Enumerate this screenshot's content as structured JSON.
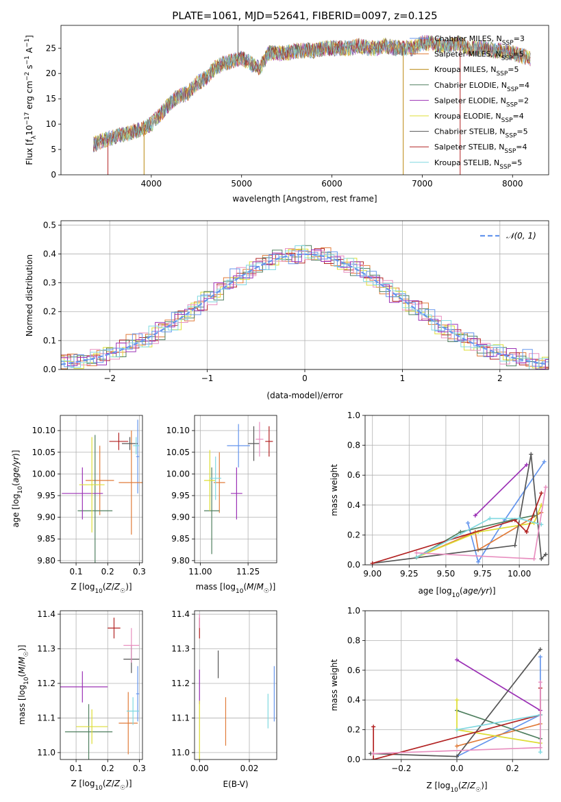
{
  "colors": [
    "#6495ed",
    "#e07b39",
    "#b8860b",
    "#4f7f5f",
    "#9b30b5",
    "#dddd33",
    "#555555",
    "#b22222",
    "#7fd8e0",
    "#e88ebf",
    "#9acd32"
  ],
  "chart_data": [
    {
      "id": "spectrum",
      "type": "line",
      "title": "PLATE=1061, MJD=52641, FIBERID=0097, z=0.125",
      "xlabel": "wavelength [Angstrom, rest frame]",
      "ylabel": "Flux [f_λ 10^-17 erg cm^-2 s^-1 A^-1]",
      "xlim": [
        3000,
        8400
      ],
      "ylim": [
        0,
        29.5
      ],
      "xticks": [
        "4000",
        "5000",
        "6000",
        "7000",
        "8000"
      ],
      "yticks": [
        "0",
        "5",
        "10",
        "15",
        "20",
        "25"
      ],
      "grid": false,
      "legend_position": "top-right",
      "spectrum_x": [
        3360,
        3500,
        3700,
        3900,
        4000,
        4100,
        4200,
        4300,
        4400,
        4500,
        4600,
        4700,
        4800,
        4900,
        5000,
        5100,
        5200,
        5300,
        5400,
        5500,
        5600,
        5700,
        5800,
        5900,
        6000,
        6100,
        6200,
        6300,
        6400,
        6500,
        6600,
        6700,
        6800,
        6900,
        7000,
        7100,
        7200,
        7300,
        7400,
        7500,
        7600,
        7700,
        7800,
        7900,
        8000,
        8100,
        8200
      ],
      "spectrum_y": [
        6,
        7,
        8,
        9,
        10,
        12,
        14,
        15.5,
        16,
        18,
        19,
        21,
        22,
        22.5,
        23,
        22,
        21,
        24,
        24,
        24,
        24.5,
        24.5,
        24.5,
        25,
        25,
        25,
        25,
        25.5,
        25,
        25,
        25.5,
        25,
        25,
        25,
        26,
        26,
        25.5,
        25.5,
        26,
        25,
        25,
        25,
        24.5,
        24.5,
        24,
        23.5,
        23
      ],
      "series": [
        {
          "name": "Chabrier MILES, N_SSP=3",
          "color": "#6495ed"
        },
        {
          "name": "Salpeter MILES, N_SSP=5",
          "color": "#e07b39"
        },
        {
          "name": "Kroupa MILES, N_SSP=5",
          "color": "#b8860b"
        },
        {
          "name": "Chabrier ELODIE, N_SSP=4",
          "color": "#4f7f5f"
        },
        {
          "name": "Salpeter ELODIE, N_SSP=2",
          "color": "#9b30b5"
        },
        {
          "name": "Kroupa ELODIE, N_SSP=4",
          "color": "#dddd33"
        },
        {
          "name": "Chabrier STELIB, N_SSP=5",
          "color": "#555555"
        },
        {
          "name": "Salpeter STELIB, N_SSP=4",
          "color": "#b22222"
        },
        {
          "name": "Kroupa STELIB, N_SSP=5",
          "color": "#7fd8e0"
        }
      ]
    },
    {
      "id": "residuals",
      "type": "line",
      "xlabel": "(data-model)/error",
      "ylabel": "Normed distribution",
      "xlim": [
        -2.5,
        2.5
      ],
      "ylim": [
        0,
        0.515
      ],
      "xticks": [
        "−2",
        "−1",
        "0",
        "1",
        "2"
      ],
      "yticks": [
        "0.0",
        "0.1",
        "0.2",
        "0.3",
        "0.4",
        "0.5"
      ],
      "grid": true,
      "legend_position": "top-right",
      "reference_curve": {
        "name": "𝒩(0, 1)",
        "mean": 0,
        "sigma": 1,
        "color": "#6495ed"
      },
      "histogram_bin_width": 0.1,
      "histogram_offsets": [
        [
          0.01,
          -0.02,
          0.03,
          0.0,
          -0.03,
          0.02,
          0.01,
          -0.01,
          0.04,
          -0.02
        ],
        [
          -0.02,
          0.03,
          -0.01,
          0.02,
          0.01,
          -0.03,
          0.0,
          0.03,
          -0.02,
          0.01
        ],
        [
          0.03,
          0.01,
          -0.03,
          -0.01,
          0.02,
          0.03,
          -0.02,
          0.0,
          0.01,
          -0.03
        ],
        [
          0.0,
          -0.03,
          0.02,
          0.03,
          -0.02,
          -0.01,
          0.03,
          -0.03,
          0.02,
          0.0
        ],
        [
          -0.03,
          0.02,
          0.0,
          -0.02,
          0.03,
          0.01,
          -0.03,
          0.02,
          -0.01,
          0.03
        ]
      ]
    },
    {
      "id": "age_vs_Z",
      "type": "scatter",
      "xlabel": "Z [log10(Z/Z☉)]",
      "ylabel": "age [log10(age/yr)]",
      "xlim": [
        0.05,
        0.31
      ],
      "ylim": [
        9.795,
        10.135
      ],
      "xticks": [
        "0.1",
        "0.2",
        "0.3"
      ],
      "yticks": [
        "9.80",
        "9.85",
        "9.90",
        "9.95",
        "10.00",
        "10.05",
        "10.10"
      ],
      "grid": true,
      "points": [
        {
          "x": 0.295,
          "y": 10.04,
          "xerr": 0.005,
          "yerr": 0.085,
          "color": "#6495ed"
        },
        {
          "x": 0.275,
          "y": 9.98,
          "xerr": 0.04,
          "yerr": 0.12,
          "color": "#e07b39"
        },
        {
          "x": 0.175,
          "y": 9.985,
          "xerr": 0.045,
          "yerr": 0.08,
          "color": "#e07b39"
        },
        {
          "x": 0.16,
          "y": 9.915,
          "xerr": 0.055,
          "yerr": 0.175,
          "color": "#4f7f5f"
        },
        {
          "x": 0.12,
          "y": 9.955,
          "xerr": 0.065,
          "yerr": 0.06,
          "color": "#9b30b5"
        },
        {
          "x": 0.15,
          "y": 9.975,
          "xerr": 0.04,
          "yerr": 0.11,
          "color": "#dddd33"
        },
        {
          "x": 0.27,
          "y": 10.07,
          "xerr": 0.025,
          "yerr": 0.015,
          "color": "#555555"
        },
        {
          "x": 0.235,
          "y": 10.075,
          "xerr": 0.03,
          "yerr": 0.02,
          "color": "#b22222"
        },
        {
          "x": 0.29,
          "y": 10.065,
          "xerr": 0.01,
          "yerr": 0.02,
          "color": "#7fd8e0"
        }
      ]
    },
    {
      "id": "age_vs_mass",
      "type": "scatter",
      "xlabel": "mass [log10(M/M☉)]",
      "ylabel": "",
      "xlim": [
        10.97,
        11.4
      ],
      "ylim": [
        9.795,
        10.135
      ],
      "xticks": [
        "11.00",
        "11.25"
      ],
      "yticks": [
        "9.80",
        "9.85",
        "9.90",
        "9.95",
        "10.00",
        "10.05",
        "10.10"
      ],
      "grid": true,
      "points": [
        {
          "x": 11.2,
          "y": 10.065,
          "xerr": 0.06,
          "yerr": 0.05,
          "color": "#6495ed"
        },
        {
          "x": 11.1,
          "y": 9.98,
          "xerr": 0.03,
          "yerr": 0.07,
          "color": "#e07b39"
        },
        {
          "x": 11.06,
          "y": 9.915,
          "xerr": 0.04,
          "yerr": 0.1,
          "color": "#4f7f5f"
        },
        {
          "x": 11.19,
          "y": 9.955,
          "xerr": 0.03,
          "yerr": 0.06,
          "color": "#9b30b5"
        },
        {
          "x": 11.05,
          "y": 9.985,
          "xerr": 0.03,
          "yerr": 0.07,
          "color": "#dddd33"
        },
        {
          "x": 11.28,
          "y": 10.07,
          "xerr": 0.03,
          "yerr": 0.04,
          "color": "#555555"
        },
        {
          "x": 11.36,
          "y": 10.075,
          "xerr": 0.02,
          "yerr": 0.035,
          "color": "#b22222"
        },
        {
          "x": 11.31,
          "y": 10.08,
          "xerr": 0.02,
          "yerr": 0.04,
          "color": "#e88ebf"
        },
        {
          "x": 11.08,
          "y": 9.99,
          "xerr": 0.03,
          "yerr": 0.05,
          "color": "#7fd8e0"
        }
      ]
    },
    {
      "id": "weight_vs_age",
      "type": "line",
      "xlabel": "age [log10(age/yr)]",
      "ylabel": "mass weight",
      "xlim": [
        8.95,
        10.2
      ],
      "ylim": [
        0,
        1
      ],
      "xticks": [
        "9.00",
        "9.25",
        "9.50",
        "9.75",
        "10.00"
      ],
      "yticks": [
        "0.0",
        "0.2",
        "0.4",
        "0.6",
        "0.8",
        "1.0"
      ],
      "grid": true,
      "series": [
        {
          "color": "#6495ed",
          "x": [
            9.65,
            9.72,
            9.9,
            10.17
          ],
          "y": [
            0.28,
            0.02,
            0.3,
            0.69
          ]
        },
        {
          "color": "#e07b39",
          "x": [
            9.3,
            9.7,
            9.72,
            10.15
          ],
          "y": [
            0.05,
            0.22,
            0.1,
            0.35
          ]
        },
        {
          "color": "#4f7f5f",
          "x": [
            9.3,
            9.6,
            9.95,
            10.1
          ],
          "y": [
            0.05,
            0.22,
            0.3,
            0.33
          ]
        },
        {
          "color": "#9b30b5",
          "x": [
            9.7,
            10.05
          ],
          "y": [
            0.33,
            0.67
          ]
        },
        {
          "color": "#dddd33",
          "x": [
            9.3,
            9.72,
            10.1,
            10.15
          ],
          "y": [
            0.05,
            0.22,
            0.28,
            0.4
          ]
        },
        {
          "color": "#555555",
          "x": [
            9.0,
            9.97,
            10.08,
            10.15,
            10.18
          ],
          "y": [
            0.01,
            0.13,
            0.74,
            0.04,
            0.07
          ]
        },
        {
          "color": "#b22222",
          "x": [
            9.0,
            9.97,
            10.05,
            10.15
          ],
          "y": [
            0.01,
            0.3,
            0.22,
            0.48
          ]
        },
        {
          "color": "#7fd8e0",
          "x": [
            9.3,
            9.8,
            10.0,
            10.15
          ],
          "y": [
            0.05,
            0.31,
            0.31,
            0.27
          ]
        },
        {
          "color": "#e88ebf",
          "x": [
            9.3,
            10.1,
            10.18
          ],
          "y": [
            0.08,
            0.04,
            0.52
          ]
        }
      ]
    },
    {
      "id": "mass_vs_Z",
      "type": "scatter",
      "xlabel": "Z [log10(Z/Z☉)]",
      "ylabel": "mass [log10(M/M☉)]",
      "xlim": [
        0.05,
        0.31
      ],
      "ylim": [
        10.98,
        11.41
      ],
      "xticks": [
        "0.1",
        "0.2",
        "0.3"
      ],
      "yticks": [
        "11.0",
        "11.1",
        "11.2",
        "11.3",
        "11.4"
      ],
      "grid": true,
      "points": [
        {
          "x": 0.295,
          "y": 11.17,
          "xerr": 0.005,
          "yerr": 0.08,
          "color": "#6495ed"
        },
        {
          "x": 0.265,
          "y": 11.085,
          "xerr": 0.03,
          "yerr": 0.09,
          "color": "#e07b39"
        },
        {
          "x": 0.14,
          "y": 11.06,
          "xerr": 0.075,
          "yerr": 0.08,
          "color": "#4f7f5f"
        },
        {
          "x": 0.12,
          "y": 11.19,
          "xerr": 0.08,
          "yerr": 0.045,
          "color": "#9b30b5"
        },
        {
          "x": 0.15,
          "y": 11.075,
          "xerr": 0.05,
          "yerr": 0.05,
          "color": "#dddd33"
        },
        {
          "x": 0.275,
          "y": 11.27,
          "xerr": 0.025,
          "yerr": 0.04,
          "color": "#555555"
        },
        {
          "x": 0.22,
          "y": 11.36,
          "xerr": 0.02,
          "yerr": 0.03,
          "color": "#b22222"
        },
        {
          "x": 0.275,
          "y": 11.31,
          "xerr": 0.025,
          "yerr": 0.05,
          "color": "#e88ebf"
        },
        {
          "x": 0.28,
          "y": 11.12,
          "xerr": 0.02,
          "yerr": 0.04,
          "color": "#7fd8e0"
        }
      ]
    },
    {
      "id": "mass_vs_EBV",
      "type": "scatter",
      "xlabel": "E(B-V)",
      "ylabel": "",
      "xlim": [
        -0.002,
        0.031
      ],
      "ylim": [
        10.98,
        11.41
      ],
      "xticks": [
        "0.00",
        "0.02"
      ],
      "yticks": [
        "11.0",
        "11.1",
        "11.2",
        "11.3",
        "11.4"
      ],
      "grid": true,
      "points": [
        {
          "x": 0.03,
          "y": 11.17,
          "yerr": 0.08,
          "color": "#6495ed"
        },
        {
          "x": 0.0105,
          "y": 11.09,
          "yerr": 0.07,
          "color": "#e07b39"
        },
        {
          "x": 0.0,
          "y": 11.19,
          "yerr": 0.05,
          "color": "#9b30b5"
        },
        {
          "x": 0.0,
          "y": 11.06,
          "yerr": 0.09,
          "color": "#dddd33"
        },
        {
          "x": 0.0075,
          "y": 11.255,
          "yerr": 0.04,
          "color": "#555555"
        },
        {
          "x": 0.0,
          "y": 11.36,
          "yerr": 0.03,
          "color": "#b22222"
        },
        {
          "x": 0.0275,
          "y": 11.12,
          "yerr": 0.05,
          "color": "#7fd8e0"
        },
        {
          "x": 0.0,
          "y": 11.38,
          "yerr": 0.02,
          "color": "#e88ebf"
        }
      ]
    },
    {
      "id": "weight_vs_Z",
      "type": "line",
      "xlabel": "Z [log10(Z/Z☉)]",
      "ylabel": "mass weight",
      "xlim": [
        -0.33,
        0.33
      ],
      "ylim": [
        0,
        1
      ],
      "xticks": [
        "−0.2",
        "0.0",
        "0.2"
      ],
      "yticks": [
        "0.0",
        "0.2",
        "0.4",
        "0.6",
        "0.8",
        "1.0"
      ],
      "grid": true,
      "series": [
        {
          "color": "#6495ed",
          "x": [
            0.0,
            0.3,
            0.3
          ],
          "y": [
            0.02,
            0.3,
            0.69
          ]
        },
        {
          "color": "#e07b39",
          "x": [
            0.0,
            0.3
          ],
          "y": [
            0.09,
            0.24
          ]
        },
        {
          "color": "#4f7f5f",
          "x": [
            0.0,
            0.3
          ],
          "y": [
            0.33,
            0.14
          ]
        },
        {
          "color": "#9b30b5",
          "x": [
            0.0,
            0.3
          ],
          "y": [
            0.67,
            0.33
          ]
        },
        {
          "color": "#dddd33",
          "x": [
            0.0,
            0.0,
            0.3
          ],
          "y": [
            0.4,
            0.2,
            0.11
          ]
        },
        {
          "color": "#555555",
          "x": [
            -0.31,
            0.0,
            0.3
          ],
          "y": [
            0.04,
            0.02,
            0.74
          ]
        },
        {
          "color": "#b22222",
          "x": [
            -0.3,
            -0.3,
            0.3,
            0.3
          ],
          "y": [
            0.22,
            0.0,
            0.3,
            0.48
          ]
        },
        {
          "color": "#7fd8e0",
          "x": [
            0.0,
            0.3,
            0.3
          ],
          "y": [
            0.2,
            0.3,
            0.05
          ]
        },
        {
          "color": "#e88ebf",
          "x": [
            -0.3,
            0.3,
            0.3
          ],
          "y": [
            0.04,
            0.08,
            0.52
          ]
        }
      ]
    }
  ]
}
